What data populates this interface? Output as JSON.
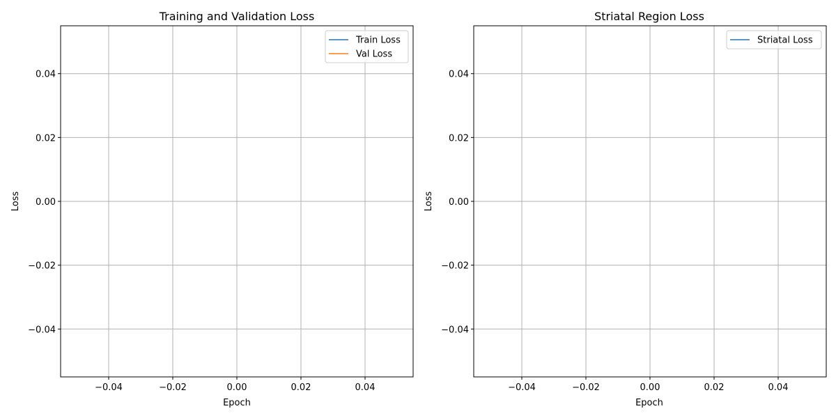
{
  "chart_data": [
    {
      "type": "line",
      "title": "Training and Validation Loss",
      "xlabel": "Epoch",
      "ylabel": "Loss",
      "xlim": [
        -0.055,
        0.055
      ],
      "ylim": [
        -0.055,
        0.055
      ],
      "xticks": [
        -0.04,
        -0.02,
        0.0,
        0.02,
        0.04
      ],
      "yticks": [
        -0.04,
        -0.02,
        0.0,
        0.02,
        0.04
      ],
      "xtick_labels": [
        "−0.04",
        "−0.02",
        "0.00",
        "0.02",
        "0.04"
      ],
      "ytick_labels": [
        "−0.04",
        "−0.02",
        "0.00",
        "0.02",
        "0.04"
      ],
      "grid": true,
      "legend_position": "upper right",
      "series": [
        {
          "name": "Train Loss",
          "color": "#1f77b4",
          "x": [],
          "y": []
        },
        {
          "name": "Val Loss",
          "color": "#ff7f0e",
          "x": [],
          "y": []
        }
      ]
    },
    {
      "type": "line",
      "title": "Striatal Region Loss",
      "xlabel": "Epoch",
      "ylabel": "Loss",
      "xlim": [
        -0.055,
        0.055
      ],
      "ylim": [
        -0.055,
        0.055
      ],
      "xticks": [
        -0.04,
        -0.02,
        0.0,
        0.02,
        0.04
      ],
      "yticks": [
        -0.04,
        -0.02,
        0.0,
        0.02,
        0.04
      ],
      "xtick_labels": [
        "−0.04",
        "−0.02",
        "0.00",
        "0.02",
        "0.04"
      ],
      "ytick_labels": [
        "−0.04",
        "−0.02",
        "0.00",
        "0.02",
        "0.04"
      ],
      "grid": true,
      "legend_position": "upper right",
      "series": [
        {
          "name": "Striatal Loss",
          "color": "#1f77b4",
          "x": [],
          "y": []
        }
      ]
    }
  ]
}
